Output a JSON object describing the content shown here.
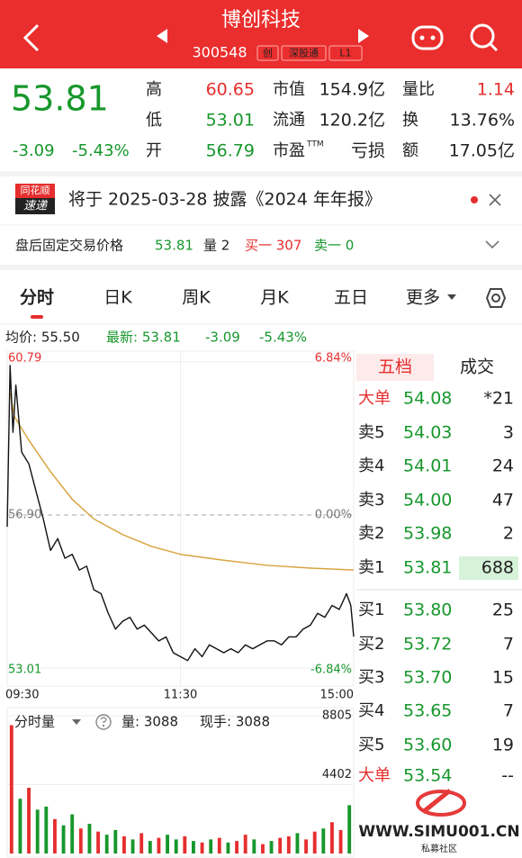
{
  "header": {
    "title": "博创科技",
    "code": "300548",
    "badges": [
      "创",
      "深股通",
      "L1"
    ]
  },
  "quote": {
    "price": "53.81",
    "change": "-3.09",
    "change_pct": "-5.43%",
    "stats": [
      {
        "label": "高",
        "value": "60.65"
      },
      {
        "label": "低",
        "value": "53.01"
      },
      {
        "label": "开",
        "value": "56.79"
      },
      {
        "label": "市值",
        "value": "154.9亿"
      },
      {
        "label": "流通",
        "value": "120.2亿"
      },
      {
        "label": "市盈",
        "sup": "TTM",
        "value": "亏损"
      },
      {
        "label": "量比",
        "value": "1.14"
      },
      {
        "label": "换",
        "value": "13.76%"
      },
      {
        "label": "额",
        "value": "17.05亿"
      }
    ]
  },
  "notice": {
    "badge_top": "同花顺",
    "badge_bottom": "速递",
    "text": "将于 2025-03-28 披露《2024 年年报》"
  },
  "after_hours": {
    "label": "盘后固定交易价格",
    "price": "53.81",
    "volume": "量 2",
    "bid1": "买一 307",
    "ask1": "卖一 0"
  },
  "tabs": [
    "分时",
    "日K",
    "周K",
    "月K",
    "五日",
    "更多"
  ],
  "summary": {
    "avg": "均价: 55.50",
    "latest": "最新: 53.81",
    "change": "-3.09",
    "change_pct": "-5.43%"
  },
  "intraday": {
    "xlim": [
      0,
      240
    ],
    "xticks": [
      {
        "value": 0,
        "label": "09:30"
      },
      {
        "value": 120,
        "label": "11:30"
      },
      {
        "value": 240,
        "label": "15:00"
      }
    ],
    "ylim": [
      53.01,
      60.79
    ],
    "yticks": [
      60.79,
      {
        "value": 56.9,
        "label": "56.90"
      },
      53.01
    ],
    "y2lim": [
      -6.84,
      6.84
    ],
    "y2ticks": [
      {
        "value": 6.84,
        "label": "6.84%"
      },
      {
        "value": 0,
        "label": "0.00%"
      },
      {
        "value": -6.84,
        "label": "-6.84%"
      }
    ],
    "price": {
      "color": "#111111",
      "x": [
        0,
        2,
        4,
        6,
        10,
        15,
        20,
        25,
        30,
        35,
        40,
        45,
        50,
        55,
        60,
        65,
        70,
        75,
        80,
        85,
        90,
        95,
        100,
        105,
        110,
        115,
        120,
        125,
        130,
        135,
        140,
        145,
        150,
        155,
        160,
        165,
        170,
        175,
        180,
        185,
        190,
        195,
        200,
        205,
        210,
        215,
        220,
        225,
        230,
        235,
        238,
        240
      ],
      "values": [
        56.6,
        60.7,
        59.0,
        60.2,
        58.5,
        58.2,
        57.5,
        56.8,
        56.0,
        56.3,
        55.8,
        55.9,
        55.5,
        55.6,
        55.0,
        54.9,
        54.4,
        54.0,
        54.2,
        54.3,
        54.0,
        54.1,
        53.9,
        53.7,
        53.8,
        53.4,
        53.3,
        53.2,
        53.5,
        53.3,
        53.6,
        53.5,
        53.4,
        53.5,
        53.4,
        53.6,
        53.5,
        53.6,
        53.7,
        53.7,
        53.6,
        53.8,
        53.8,
        54.0,
        54.1,
        54.4,
        54.3,
        54.6,
        54.5,
        54.9,
        54.6,
        53.81
      ]
    },
    "avg": {
      "color": "#d9a441",
      "x": [
        2,
        5,
        15,
        30,
        45,
        60,
        80,
        100,
        120,
        150,
        180,
        210,
        240
      ],
      "values": [
        60.0,
        59.4,
        58.8,
        58.0,
        57.3,
        56.8,
        56.4,
        56.1,
        55.9,
        55.75,
        55.62,
        55.55,
        55.5
      ]
    },
    "volume": {
      "label": "分时量",
      "volume_text": "量: 3088",
      "hand_text": "现手: 3088",
      "ylim": [
        0,
        8805
      ],
      "yticks": [
        8805,
        4402
      ],
      "values": [
        8200,
        3500,
        4200,
        2800,
        3000,
        2200,
        1800,
        2500,
        1600,
        1900,
        1400,
        1200,
        1500,
        1100,
        900,
        1300,
        800,
        1000,
        1200,
        900,
        1100,
        800,
        700,
        900,
        1000,
        700,
        800,
        1200,
        900,
        600,
        800,
        1000,
        1100,
        1300,
        900,
        1400,
        1600,
        2000,
        1500,
        3088
      ],
      "colors": [
        "#e62e2e",
        "#17972c",
        "#e62e2e",
        "#17972c",
        "#17972c",
        "#e62e2e",
        "#17972c",
        "#17972c",
        "#e62e2e",
        "#17972c",
        "#e62e2e",
        "#17972c",
        "#17972c",
        "#e62e2e",
        "#17972c",
        "#e62e2e",
        "#17972c",
        "#e62e2e",
        "#17972c",
        "#17972c",
        "#e62e2e",
        "#17972c",
        "#e62e2e",
        "#17972c",
        "#e62e2e",
        "#17972c",
        "#e62e2e",
        "#e62e2e",
        "#17972c",
        "#e62e2e",
        "#17972c",
        "#e62e2e",
        "#e62e2e",
        "#17972c",
        "#e62e2e",
        "#e62e2e",
        "#17972c",
        "#e62e2e",
        "#e62e2e",
        "#17972c"
      ]
    }
  },
  "order_book": {
    "tabs": [
      "五档",
      "成交"
    ],
    "rows": [
      [
        "大单",
        "54.08",
        "*21"
      ],
      [
        "卖5",
        "54.03",
        "3"
      ],
      [
        "卖4",
        "54.01",
        "24"
      ],
      [
        "卖3",
        "54.00",
        "47"
      ],
      [
        "卖2",
        "53.98",
        "2"
      ],
      [
        "卖1",
        "53.81",
        "688"
      ],
      [
        "买1",
        "53.80",
        "25"
      ],
      [
        "买2",
        "53.72",
        "7"
      ],
      [
        "买3",
        "53.70",
        "15"
      ],
      [
        "买4",
        "53.65",
        "7"
      ],
      [
        "买5",
        "53.60",
        "19"
      ],
      [
        "大单",
        "53.54",
        "--"
      ]
    ]
  },
  "watermark": {
    "url": "WWW.SIMU001.CN",
    "caption": "私募社区"
  }
}
